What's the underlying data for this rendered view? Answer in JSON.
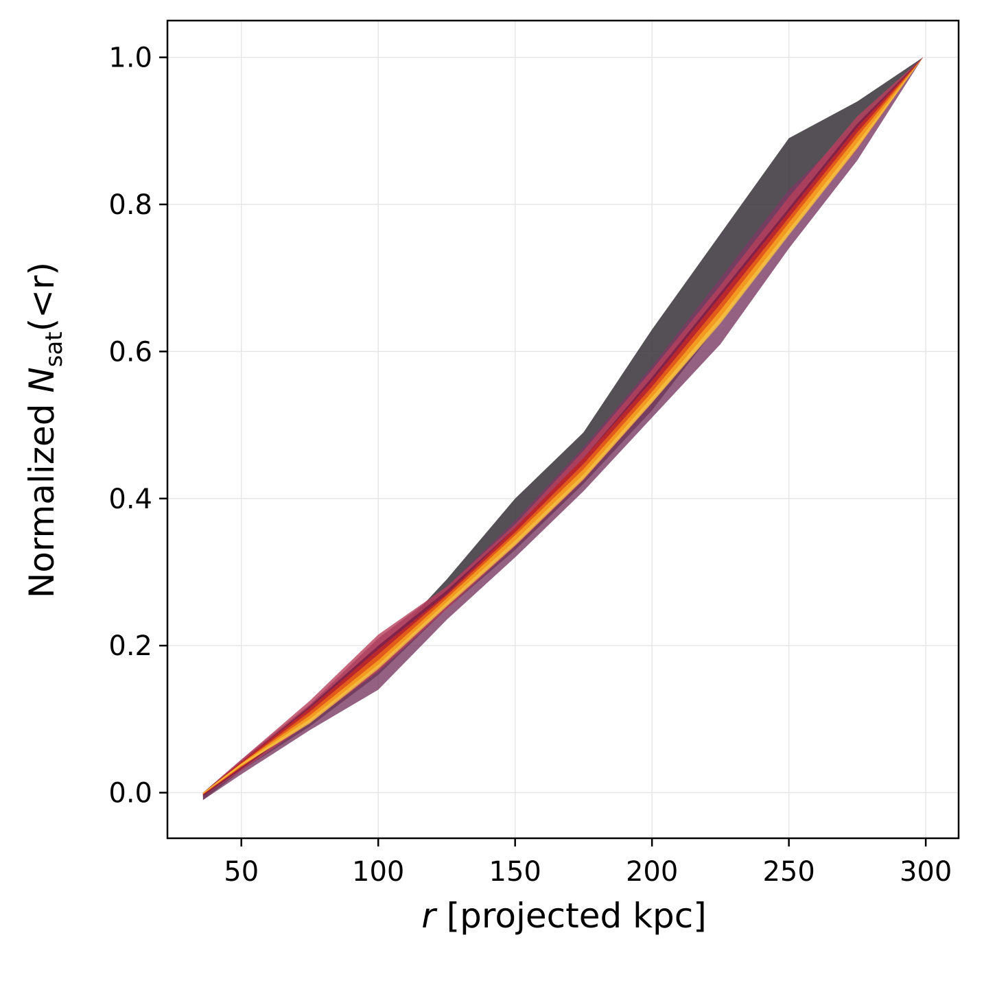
{
  "chart_data": {
    "type": "area",
    "xlabel_var": "r",
    "xlabel_rest": " [projected kpc]",
    "ylabel_pre": "Normalized ",
    "ylabel_var": "N",
    "ylabel_sub": "sat",
    "ylabel_post": "(<r)",
    "xlim": [
      23,
      312
    ],
    "ylim": [
      -0.062,
      1.05
    ],
    "xticks": [
      50,
      100,
      150,
      200,
      250,
      300
    ],
    "xtick_labels": [
      "50",
      "100",
      "150",
      "200",
      "250",
      "300"
    ],
    "yticks": [
      0.0,
      0.2,
      0.4,
      0.6,
      0.8,
      1.0
    ],
    "ytick_labels": [
      "0.0",
      "0.2",
      "0.4",
      "0.6",
      "0.8",
      "1.0"
    ],
    "grid": true,
    "x": [
      36,
      50,
      75,
      100,
      125,
      150,
      175,
      200,
      225,
      250,
      275,
      299
    ],
    "series": [
      {
        "color": "#3d383f",
        "opacity": 0.88,
        "lower": [
          -0.01,
          0.03,
          0.09,
          0.16,
          0.25,
          0.33,
          0.42,
          0.52,
          0.64,
          0.77,
          0.88,
          1.0
        ],
        "upper": [
          0.0,
          0.04,
          0.11,
          0.19,
          0.29,
          0.4,
          0.49,
          0.63,
          0.76,
          0.89,
          0.94,
          1.0
        ]
      },
      {
        "color": "#7a3a63",
        "opacity": 0.8,
        "lower": [
          -0.01,
          0.025,
          0.085,
          0.14,
          0.235,
          0.32,
          0.41,
          0.51,
          0.61,
          0.74,
          0.86,
          1.0
        ],
        "upper": [
          0.0,
          0.045,
          0.12,
          0.21,
          0.28,
          0.37,
          0.47,
          0.58,
          0.7,
          0.82,
          0.91,
          1.0
        ]
      },
      {
        "color": "#b8405c",
        "opacity": 0.8,
        "lower": [
          -0.005,
          0.03,
          0.095,
          0.165,
          0.25,
          0.335,
          0.425,
          0.53,
          0.64,
          0.76,
          0.875,
          1.0
        ],
        "upper": [
          0.0,
          0.045,
          0.125,
          0.215,
          0.28,
          0.365,
          0.465,
          0.575,
          0.69,
          0.81,
          0.92,
          1.0
        ]
      },
      {
        "color": "#7a1f45",
        "opacity": 0.85,
        "lower": [
          -0.005,
          0.032,
          0.1,
          0.17,
          0.255,
          0.34,
          0.43,
          0.535,
          0.645,
          0.765,
          0.878,
          1.0
        ],
        "upper": [
          0.0,
          0.042,
          0.118,
          0.2,
          0.275,
          0.36,
          0.455,
          0.565,
          0.68,
          0.795,
          0.91,
          1.0
        ]
      },
      {
        "color": "#c0282a",
        "opacity": 0.9,
        "lower": [
          -0.003,
          0.034,
          0.1,
          0.175,
          0.26,
          0.345,
          0.435,
          0.54,
          0.65,
          0.77,
          0.882,
          1.0
        ],
        "upper": [
          0.0,
          0.042,
          0.115,
          0.195,
          0.27,
          0.36,
          0.455,
          0.56,
          0.675,
          0.79,
          0.905,
          1.0
        ]
      },
      {
        "color": "#e8621a",
        "opacity": 0.9,
        "lower": [
          -0.002,
          0.035,
          0.098,
          0.172,
          0.257,
          0.342,
          0.432,
          0.535,
          0.645,
          0.765,
          0.88,
          1.0
        ],
        "upper": [
          0.0,
          0.04,
          0.11,
          0.188,
          0.268,
          0.354,
          0.447,
          0.552,
          0.665,
          0.782,
          0.898,
          1.0
        ]
      },
      {
        "color": "#f5a623",
        "opacity": 0.85,
        "lower": [
          -0.002,
          0.036,
          0.096,
          0.17,
          0.255,
          0.338,
          0.428,
          0.532,
          0.64,
          0.76,
          0.878,
          1.0
        ],
        "upper": [
          0.0,
          0.04,
          0.105,
          0.18,
          0.264,
          0.35,
          0.44,
          0.545,
          0.656,
          0.775,
          0.892,
          1.0
        ]
      },
      {
        "color": "#f7c948",
        "opacity": 0.7,
        "lower": [
          -0.001,
          0.037,
          0.094,
          0.168,
          0.253,
          0.336,
          0.426,
          0.53,
          0.638,
          0.758,
          0.876,
          1.0
        ],
        "upper": [
          0.0,
          0.039,
          0.1,
          0.174,
          0.259,
          0.343,
          0.433,
          0.538,
          0.647,
          0.766,
          0.884,
          1.0
        ]
      }
    ]
  }
}
